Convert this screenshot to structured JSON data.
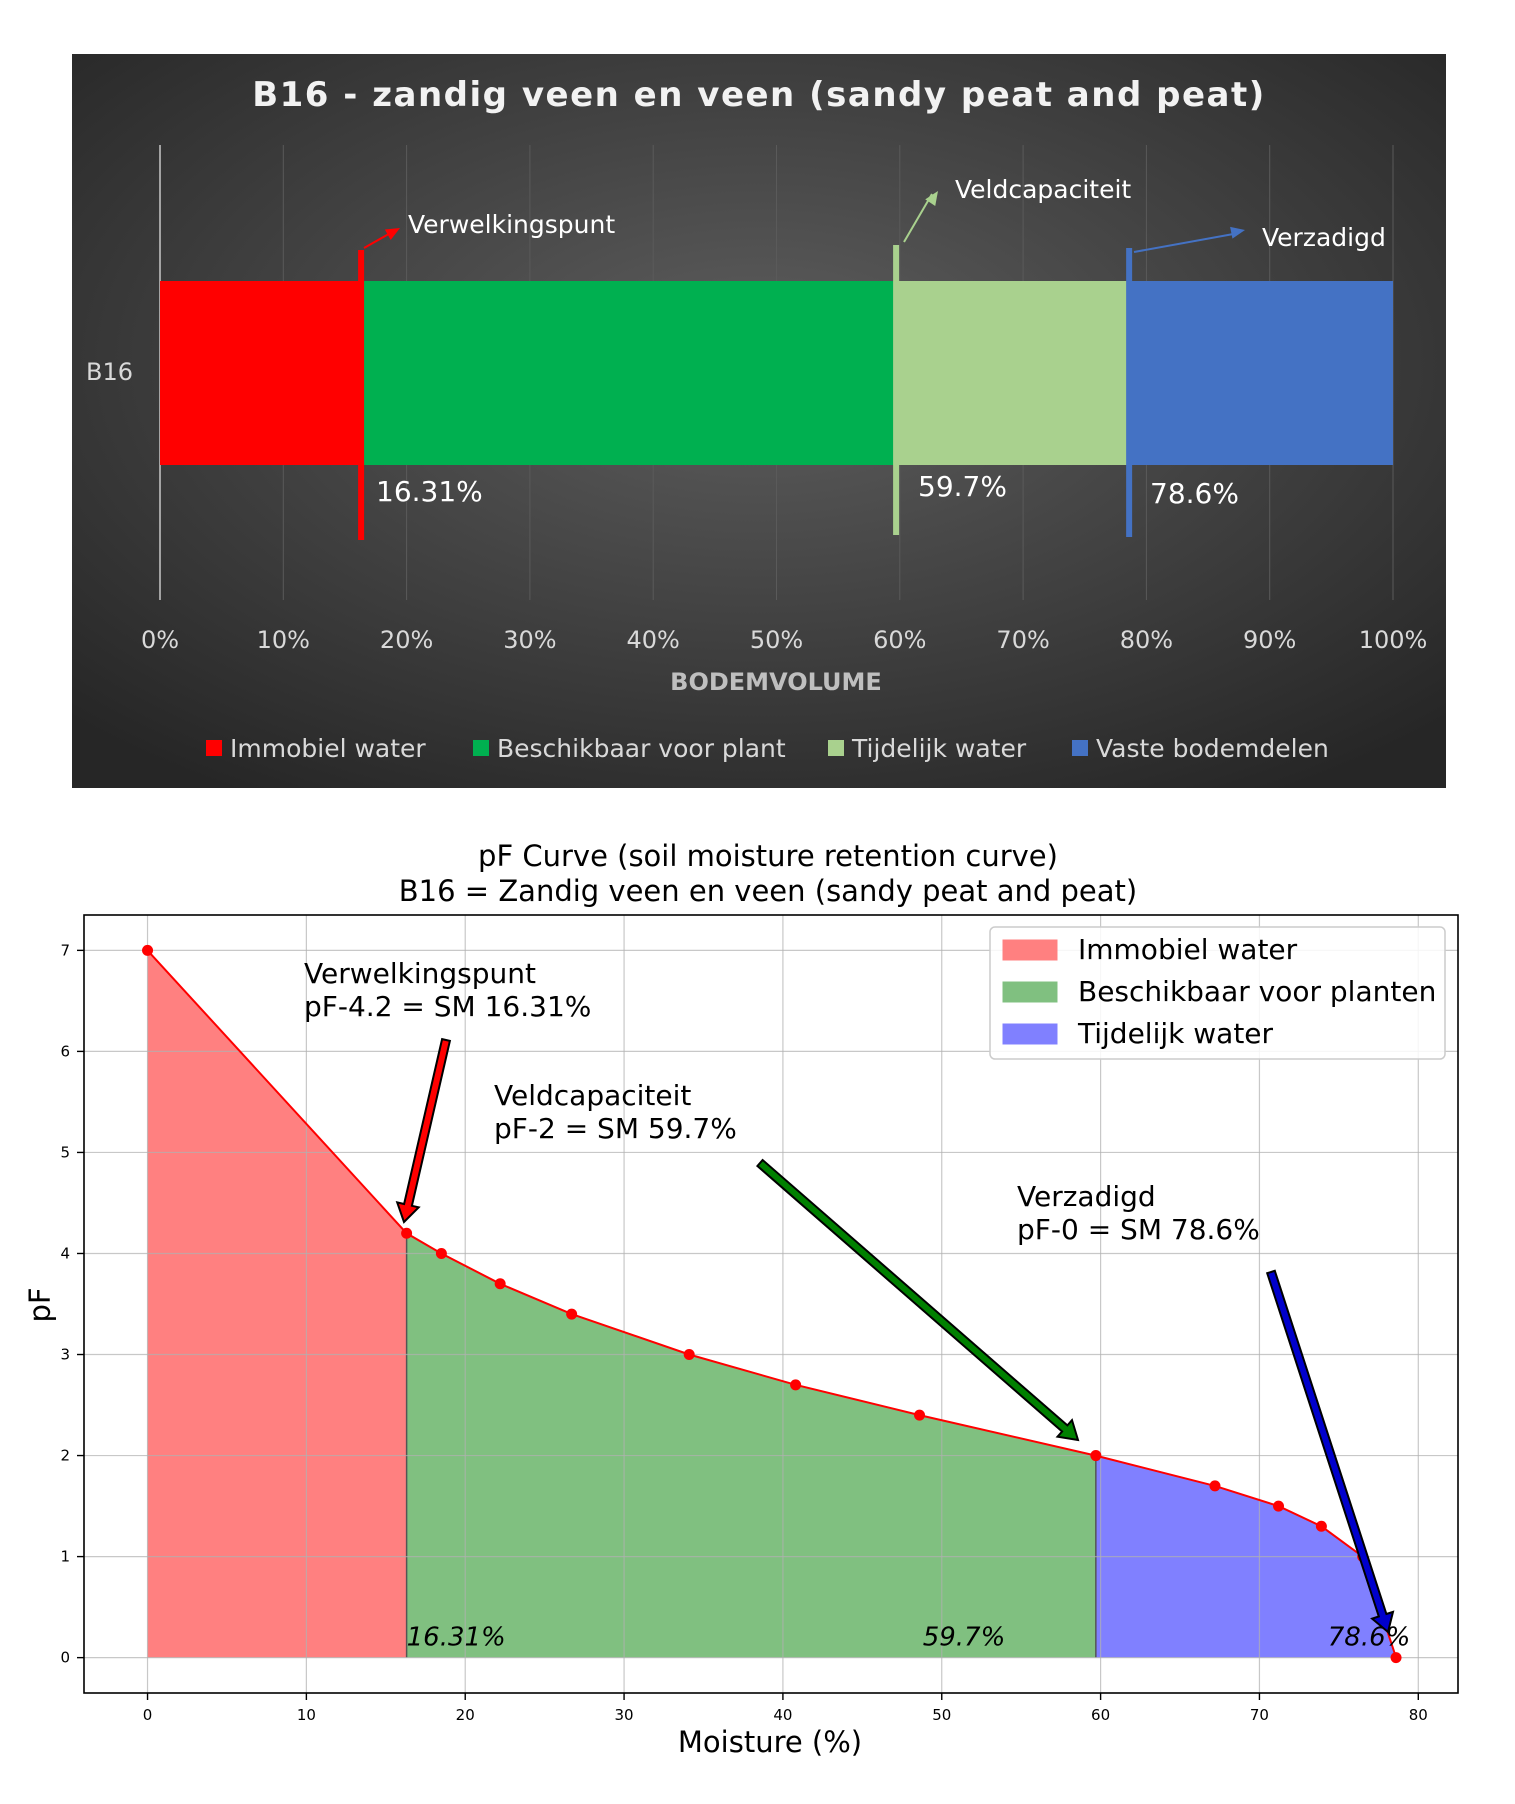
{
  "chart_data": [
    {
      "type": "bar",
      "orientation": "horizontal",
      "stacked": true,
      "title": "B16 - zandig veen en veen (sandy peat and peat)",
      "xlabel": "BODEMVOLUME",
      "categories": [
        "B16"
      ],
      "xlim": [
        0,
        100
      ],
      "xticks": [
        "0%",
        "10%",
        "20%",
        "30%",
        "40%",
        "50%",
        "60%",
        "70%",
        "80%",
        "90%",
        "100%"
      ],
      "series": [
        {
          "name": "Immobiel water",
          "values": [
            16.31
          ],
          "color": "#ff0000"
        },
        {
          "name": "Beschikbaar voor plant",
          "values": [
            43.39
          ],
          "color": "#00b050"
        },
        {
          "name": "Tijdelijk water",
          "values": [
            18.9
          ],
          "color": "#a9d18e"
        },
        {
          "name": "Vaste bodemdelen",
          "values": [
            21.4
          ],
          "color": "#4472c4"
        }
      ],
      "markers": [
        {
          "label": "Verwelkingspunt",
          "value": 16.31,
          "value_label": "16.31%",
          "color": "#ff0000"
        },
        {
          "label": "Veldcapaciteit",
          "value": 59.7,
          "value_label": "59.7%",
          "color": "#a9d18e"
        },
        {
          "label": "Verzadigd",
          "value": 78.6,
          "value_label": "78.6%",
          "color": "#4472c4"
        }
      ],
      "legend_position": "bottom",
      "grid": true,
      "background": "#3f3f3f"
    },
    {
      "type": "area",
      "title": "pF Curve (soil moisture retention curve)",
      "subtitle": "B16 = Zandig veen en veen (sandy peat and peat)",
      "xlabel": "Moisture (%)",
      "ylabel": "pF",
      "xlim": [
        -4,
        82.5
      ],
      "ylim": [
        -0.35,
        7.35
      ],
      "xticks": [
        0,
        10,
        20,
        30,
        40,
        50,
        60,
        70,
        80
      ],
      "yticks": [
        0,
        1,
        2,
        3,
        4,
        5,
        6,
        7
      ],
      "grid": true,
      "x": [
        0,
        16.31,
        18.5,
        22.2,
        26.7,
        34.1,
        40.8,
        48.6,
        59.7,
        67.2,
        71.2,
        73.9,
        76.5,
        78.6
      ],
      "y": [
        7,
        4.2,
        4.0,
        3.7,
        3.4,
        3.0,
        2.7,
        2.4,
        2.0,
        1.7,
        1.5,
        1.3,
        1.0,
        0
      ],
      "line_color": "#ff0000",
      "regions": [
        {
          "name": "Immobiel water",
          "from": 0,
          "to": 16.31,
          "color": "#ff8080"
        },
        {
          "name": "Beschikbaar voor planten",
          "from": 16.31,
          "to": 59.7,
          "color": "#80c080"
        },
        {
          "name": "Tijdelijk water",
          "from": 59.7,
          "to": 78.6,
          "color": "#8080ff"
        }
      ],
      "region_labels": [
        "16.31%",
        "59.7%",
        "78.6%"
      ],
      "annotations": [
        {
          "lines": [
            "Verwelkingspunt",
            " pF-4.2 = SM 16.31%"
          ],
          "arrow_color": "#ff0000"
        },
        {
          "lines": [
            "Veldcapaciteit",
            " pF-2 = SM 59.7%"
          ],
          "arrow_color": "#008000"
        },
        {
          "lines": [
            "Verzadigd",
            " pF-0 = SM 78.6%"
          ],
          "arrow_color": "#0000cc"
        }
      ],
      "legend_position": "top-right"
    }
  ]
}
